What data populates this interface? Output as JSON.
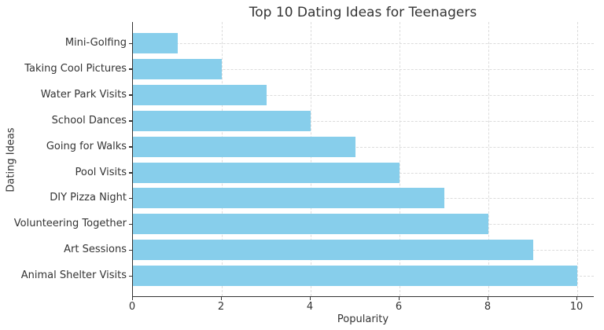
{
  "chart_data": {
    "type": "bar",
    "orientation": "horizontal",
    "title": "Top 10 Dating Ideas for Teenagers",
    "xlabel": "Popularity",
    "ylabel": "Dating Ideas",
    "categories": [
      "Mini-Golfing",
      "Taking Cool Pictures",
      "Water Park Visits",
      "School Dances",
      "Going for Walks",
      "Pool Visits",
      "DIY Pizza Night",
      "Volunteering Together",
      "Art Sessions",
      "Animal Shelter Visits"
    ],
    "values": [
      1,
      2,
      3,
      4,
      5,
      6,
      7,
      8,
      9,
      10
    ],
    "x_ticks": [
      0,
      2,
      4,
      6,
      8,
      10
    ],
    "xlim": [
      0,
      10.39
    ],
    "bar_color": "#87CEEB",
    "grid": "dashed, both axes",
    "legend_position": "none"
  }
}
